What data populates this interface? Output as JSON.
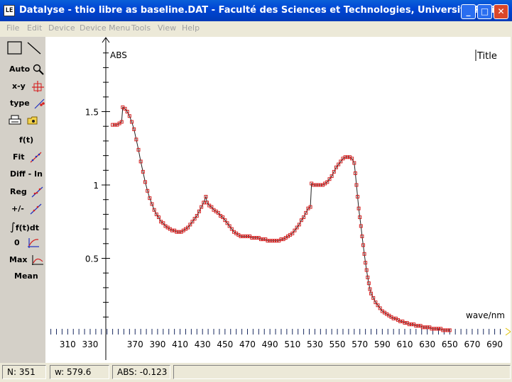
{
  "window": {
    "title": "Datalyse - thio libre as baseline.DAT - Faculté des Sciences et Technologies, Université Paris",
    "app_icon_label": "LE",
    "buttons": [
      "_",
      "□",
      "✕"
    ]
  },
  "menu": [
    "File",
    "Edit",
    "Device",
    "Device Menu",
    "Tools",
    "View",
    "Help"
  ],
  "toolbar": {
    "auto": "Auto",
    "xy": "x-y",
    "type": "type",
    "ft": "f(t)",
    "fit": "Fit",
    "diff": "Diff - In",
    "reg": "Reg",
    "plusminus": "+/-",
    "integral": "f(t)dt",
    "zero": "0",
    "max": "Max",
    "mean": "Mean"
  },
  "chart_data": {
    "type": "scatter",
    "title": "Title",
    "xlabel": "wave/nm",
    "ylabel": "ABS",
    "xlim": [
      290,
      700
    ],
    "ylim": [
      0,
      2.0
    ],
    "x_ticks": [
      310,
      330,
      370,
      390,
      410,
      430,
      450,
      470,
      490,
      510,
      530,
      550,
      570,
      590,
      610,
      630,
      650,
      670,
      690
    ],
    "y_ticks": [
      0.5,
      1,
      1.5
    ],
    "y_tick_labels": [
      "0.5",
      "1",
      "1.5"
    ],
    "marker_color": "#d42020",
    "line_color": "#202020",
    "series": [
      {
        "points": [
          [
            350,
            1.41
          ],
          [
            352,
            1.41
          ],
          [
            354,
            1.41
          ],
          [
            356,
            1.42
          ],
          [
            358,
            1.43
          ],
          [
            359,
            1.53
          ],
          [
            361,
            1.52
          ],
          [
            363,
            1.5
          ],
          [
            365,
            1.47
          ],
          [
            367,
            1.43
          ],
          [
            369,
            1.38
          ],
          [
            371,
            1.31
          ],
          [
            373,
            1.24
          ],
          [
            375,
            1.16
          ],
          [
            377,
            1.09
          ],
          [
            379,
            1.02
          ],
          [
            381,
            0.96
          ],
          [
            383,
            0.91
          ],
          [
            385,
            0.87
          ],
          [
            387,
            0.83
          ],
          [
            389,
            0.8
          ],
          [
            391,
            0.78
          ],
          [
            393,
            0.75
          ],
          [
            395,
            0.74
          ],
          [
            397,
            0.72
          ],
          [
            399,
            0.71
          ],
          [
            401,
            0.7
          ],
          [
            403,
            0.69
          ],
          [
            405,
            0.69
          ],
          [
            407,
            0.68
          ],
          [
            409,
            0.68
          ],
          [
            411,
            0.68
          ],
          [
            413,
            0.69
          ],
          [
            415,
            0.7
          ],
          [
            417,
            0.71
          ],
          [
            419,
            0.73
          ],
          [
            421,
            0.75
          ],
          [
            423,
            0.77
          ],
          [
            425,
            0.79
          ],
          [
            427,
            0.82
          ],
          [
            429,
            0.85
          ],
          [
            431,
            0.88
          ],
          [
            433,
            0.92
          ],
          [
            434,
            0.88
          ],
          [
            436,
            0.86
          ],
          [
            438,
            0.85
          ],
          [
            440,
            0.83
          ],
          [
            442,
            0.82
          ],
          [
            444,
            0.81
          ],
          [
            446,
            0.79
          ],
          [
            448,
            0.78
          ],
          [
            450,
            0.76
          ],
          [
            452,
            0.74
          ],
          [
            454,
            0.72
          ],
          [
            456,
            0.7
          ],
          [
            458,
            0.68
          ],
          [
            460,
            0.67
          ],
          [
            462,
            0.66
          ],
          [
            464,
            0.65
          ],
          [
            466,
            0.65
          ],
          [
            468,
            0.65
          ],
          [
            470,
            0.65
          ],
          [
            472,
            0.65
          ],
          [
            474,
            0.64
          ],
          [
            476,
            0.64
          ],
          [
            478,
            0.64
          ],
          [
            480,
            0.64
          ],
          [
            482,
            0.63
          ],
          [
            484,
            0.63
          ],
          [
            486,
            0.63
          ],
          [
            488,
            0.62
          ],
          [
            490,
            0.62
          ],
          [
            492,
            0.62
          ],
          [
            494,
            0.62
          ],
          [
            496,
            0.62
          ],
          [
            498,
            0.62
          ],
          [
            500,
            0.63
          ],
          [
            502,
            0.63
          ],
          [
            504,
            0.64
          ],
          [
            506,
            0.65
          ],
          [
            508,
            0.66
          ],
          [
            510,
            0.67
          ],
          [
            512,
            0.69
          ],
          [
            514,
            0.71
          ],
          [
            516,
            0.73
          ],
          [
            518,
            0.76
          ],
          [
            520,
            0.78
          ],
          [
            522,
            0.81
          ],
          [
            524,
            0.84
          ],
          [
            526,
            0.85
          ],
          [
            527,
            1.01
          ],
          [
            529,
            1.0
          ],
          [
            531,
            1.0
          ],
          [
            533,
            1.0
          ],
          [
            535,
            1.0
          ],
          [
            537,
            1.0
          ],
          [
            539,
            1.01
          ],
          [
            541,
            1.02
          ],
          [
            543,
            1.04
          ],
          [
            545,
            1.06
          ],
          [
            547,
            1.09
          ],
          [
            549,
            1.12
          ],
          [
            551,
            1.14
          ],
          [
            553,
            1.16
          ],
          [
            555,
            1.18
          ],
          [
            557,
            1.19
          ],
          [
            559,
            1.19
          ],
          [
            561,
            1.19
          ],
          [
            563,
            1.18
          ],
          [
            565,
            1.15
          ],
          [
            566,
            1.08
          ],
          [
            567,
            1.0
          ],
          [
            568,
            0.92
          ],
          [
            569,
            0.84
          ],
          [
            570,
            0.78
          ],
          [
            571,
            0.72
          ],
          [
            572,
            0.65
          ],
          [
            573,
            0.59
          ],
          [
            574,
            0.53
          ],
          [
            575,
            0.47
          ],
          [
            576,
            0.42
          ],
          [
            577,
            0.37
          ],
          [
            578,
            0.33
          ],
          [
            579,
            0.29
          ],
          [
            580,
            0.26
          ],
          [
            582,
            0.23
          ],
          [
            584,
            0.2
          ],
          [
            586,
            0.18
          ],
          [
            588,
            0.16
          ],
          [
            590,
            0.14
          ],
          [
            592,
            0.13
          ],
          [
            594,
            0.12
          ],
          [
            596,
            0.11
          ],
          [
            598,
            0.1
          ],
          [
            600,
            0.09
          ],
          [
            602,
            0.09
          ],
          [
            604,
            0.08
          ],
          [
            606,
            0.07
          ],
          [
            608,
            0.07
          ],
          [
            610,
            0.06
          ],
          [
            612,
            0.06
          ],
          [
            614,
            0.05
          ],
          [
            616,
            0.05
          ],
          [
            618,
            0.05
          ],
          [
            620,
            0.04
          ],
          [
            622,
            0.04
          ],
          [
            624,
            0.04
          ],
          [
            626,
            0.03
          ],
          [
            628,
            0.03
          ],
          [
            630,
            0.03
          ],
          [
            632,
            0.03
          ],
          [
            634,
            0.02
          ],
          [
            636,
            0.02
          ],
          [
            638,
            0.02
          ],
          [
            640,
            0.02
          ],
          [
            642,
            0.02
          ],
          [
            644,
            0.01
          ],
          [
            646,
            0.01
          ],
          [
            648,
            0.01
          ],
          [
            650,
            0.01
          ]
        ]
      }
    ]
  },
  "status": {
    "n": "N: 351",
    "w": "w:  579.6",
    "abs": "ABS: -0.123"
  }
}
